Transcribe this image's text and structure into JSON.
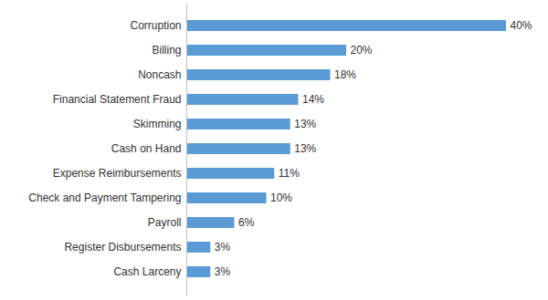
{
  "chart_data": {
    "type": "bar",
    "orientation": "horizontal",
    "categories": [
      "Corruption",
      "Billing",
      "Noncash",
      "Financial Statement Fraud",
      "Skimming",
      "Cash on Hand",
      "Expense Reimbursements",
      "Check and Payment Tampering",
      "Payroll",
      "Register Disbursements",
      "Cash Larceny"
    ],
    "values": [
      40,
      20,
      18,
      14,
      13,
      13,
      11,
      10,
      6,
      3,
      3
    ],
    "value_labels": [
      "40%",
      "20%",
      "18%",
      "14%",
      "13%",
      "13%",
      "11%",
      "10%",
      "6%",
      "3%",
      "3%"
    ],
    "color": "#5b9bd5",
    "data_labels": true,
    "tick_labels": "y",
    "grid": false
  }
}
